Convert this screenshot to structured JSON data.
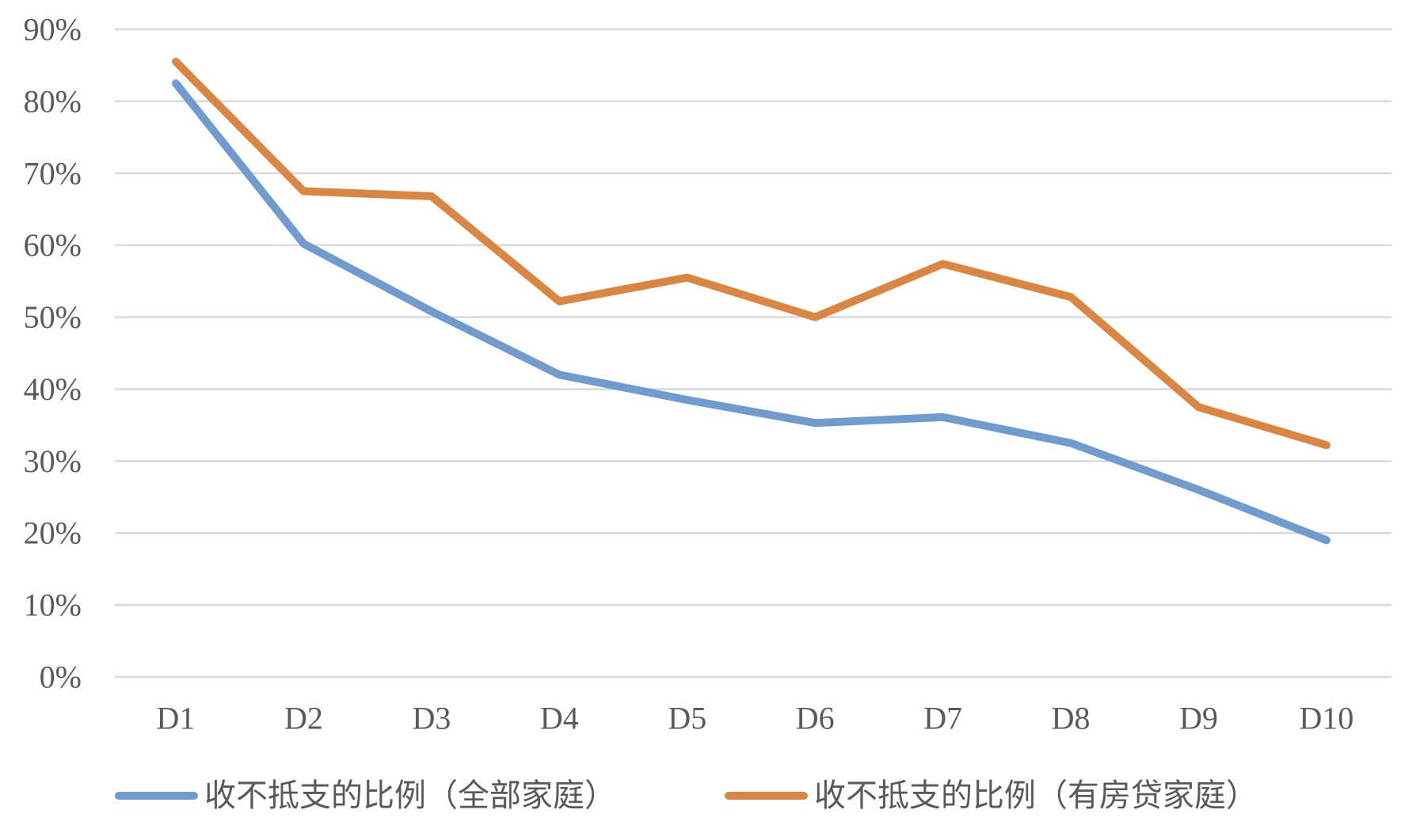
{
  "chart_data": {
    "type": "line",
    "title": "",
    "xlabel": "",
    "ylabel": "",
    "categories": [
      "D1",
      "D2",
      "D3",
      "D4",
      "D5",
      "D6",
      "D7",
      "D8",
      "D9",
      "D10"
    ],
    "ylim": [
      0,
      90
    ],
    "yticks": [
      "0%",
      "10%",
      "20%",
      "30%",
      "40%",
      "50%",
      "60%",
      "70%",
      "80%",
      "90%"
    ],
    "grid": true,
    "legend_position": "bottom",
    "series": [
      {
        "name": "收不抵支的比例（全部家庭）",
        "color": "#6f9bcf",
        "values": [
          82.5,
          60.2,
          50.8,
          42.0,
          38.5,
          35.3,
          36.1,
          32.5,
          26.0,
          19.0
        ]
      },
      {
        "name": "收不抵支的比例（有房贷家庭）",
        "color": "#db8542",
        "values": [
          85.5,
          67.5,
          66.8,
          52.2,
          55.5,
          50.0,
          57.4,
          52.8,
          37.5,
          32.2
        ]
      }
    ]
  }
}
